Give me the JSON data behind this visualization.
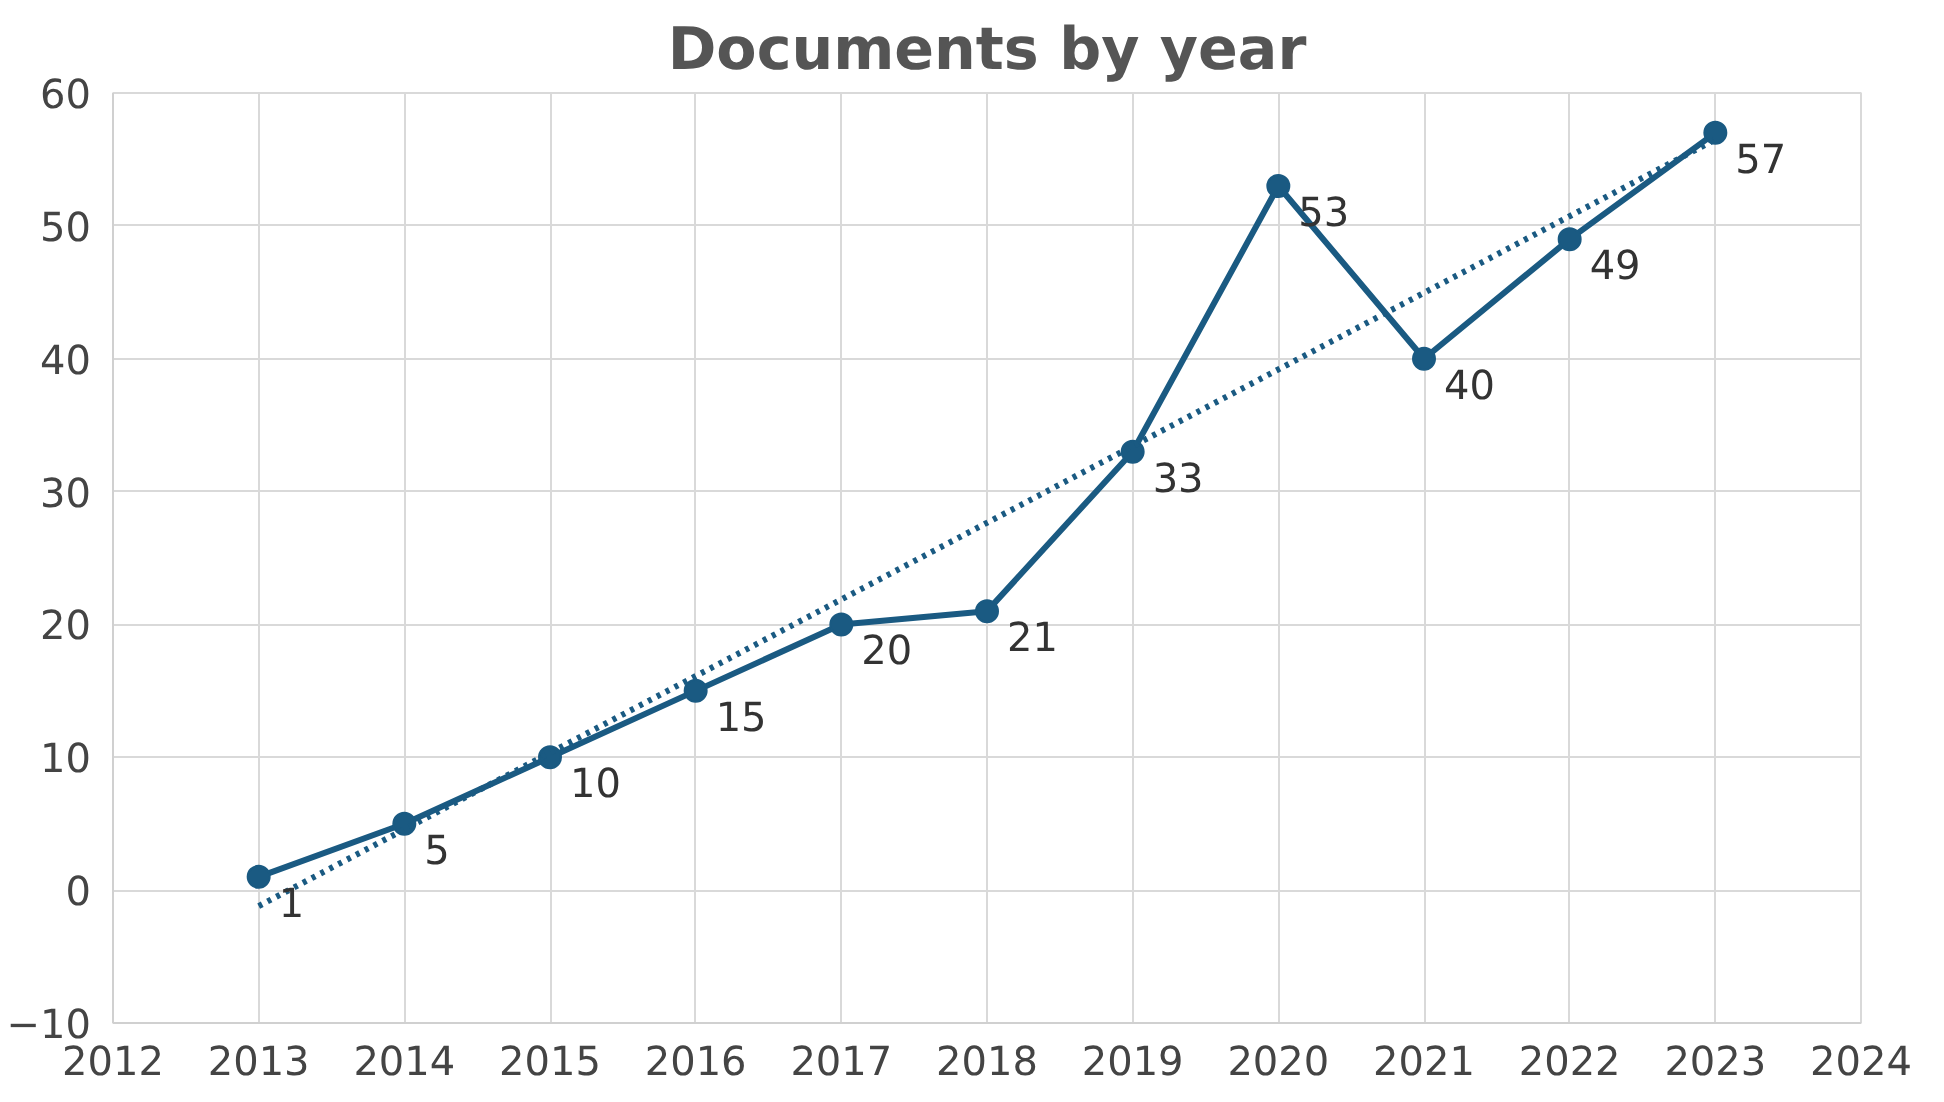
{
  "chart_data": {
    "type": "line",
    "title": "Documents by year",
    "x": [
      2013,
      2014,
      2015,
      2016,
      2017,
      2018,
      2019,
      2020,
      2021,
      2022,
      2023
    ],
    "series": [
      {
        "color": "#1a5a82",
        "values": [
          1,
          5,
          10,
          15,
          20,
          21,
          33,
          53,
          40,
          49,
          57
        ],
        "marker": "circle",
        "line_style": "solid",
        "value_labels": [
          "1",
          "5",
          "10",
          "15",
          "20",
          "21",
          "33",
          "53",
          "40",
          "49",
          "57"
        ]
      },
      {
        "color": "#1a5a82",
        "x": [
          2013,
          2023
        ],
        "values": [
          -1.2,
          56.5
        ],
        "marker": "none",
        "line_style": "dotted"
      }
    ],
    "xlim": [
      2012,
      2024
    ],
    "xticks": [
      2012,
      2013,
      2014,
      2015,
      2016,
      2017,
      2018,
      2019,
      2020,
      2021,
      2022,
      2023,
      2024
    ],
    "ylim": [
      -10,
      60
    ],
    "yticks": [
      -10,
      0,
      10,
      20,
      30,
      40,
      50,
      60
    ],
    "grid": true
  }
}
